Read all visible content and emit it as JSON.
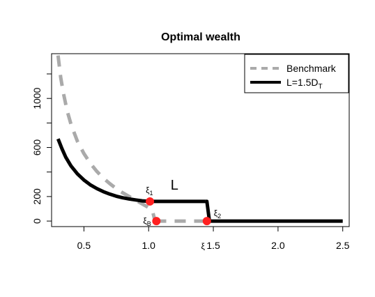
{
  "chart_data": {
    "type": "line",
    "title": "Optimal wealth",
    "xlabel": "",
    "ylabel": "",
    "xlim": [
      0.25,
      2.55
    ],
    "ylim": [
      -45,
      1365
    ],
    "xticks": [
      0.5,
      1.0,
      1.5,
      2.0,
      2.5
    ],
    "xtick_labels": [
      "0.5",
      "1.0",
      "1.5",
      "2.0",
      "2.5"
    ],
    "yticks": [
      0,
      200,
      600,
      1000
    ],
    "ytick_labels": [
      "0",
      "200",
      "600",
      "1000"
    ],
    "grid": false,
    "legend_position": "top-right",
    "series": [
      {
        "name": "Benchmark",
        "color": "#aaaaaa",
        "style": "dashed",
        "x": [
          0.3,
          0.32,
          0.34,
          0.37,
          0.4,
          0.45,
          0.5,
          0.55,
          0.6,
          0.65,
          0.7,
          0.75,
          0.8,
          0.85,
          0.9,
          0.95,
          1.0,
          1.03,
          1.05
        ],
        "y": [
          1350,
          1175,
          1050,
          900,
          790,
          650,
          550,
          470,
          405,
          350,
          305,
          265,
          230,
          200,
          170,
          140,
          110,
          80,
          0
        ]
      },
      {
        "name": "Benchmark",
        "color": "#aaaaaa",
        "style": "dashed",
        "x": [
          1.05,
          1.45
        ],
        "y": [
          0,
          0
        ]
      },
      {
        "name": "L=1.5D_T",
        "color": "#000000",
        "style": "solid",
        "x": [
          0.3,
          0.33,
          0.36,
          0.4,
          0.45,
          0.5,
          0.55,
          0.6,
          0.65,
          0.7,
          0.75,
          0.8,
          0.85,
          0.9,
          0.95,
          1.01,
          1.44
        ],
        "y": [
          670,
          590,
          520,
          450,
          385,
          335,
          295,
          265,
          240,
          220,
          203,
          190,
          180,
          172,
          165,
          160,
          160
        ]
      },
      {
        "name": "L=1.5D_T",
        "color": "#000000",
        "style": "solid",
        "x": [
          1.44,
          1.45,
          1.47,
          2.5
        ],
        "y": [
          160,
          160,
          0,
          0
        ]
      }
    ],
    "points": [
      {
        "label": "ξ1",
        "x": 1.01,
        "y": 160,
        "color": "#ff2020"
      },
      {
        "label": "ξB",
        "x": 1.06,
        "y": 0,
        "color": "#ff2020"
      },
      {
        "label": "ξ2",
        "x": 1.45,
        "y": 0,
        "color": "#ff2020"
      }
    ],
    "annotations": [
      {
        "text": "L",
        "x": 1.2,
        "y": 255
      },
      {
        "text": "ξ",
        "x": 1.42,
        "y": -230
      }
    ],
    "legend": [
      {
        "label": "Benchmark",
        "color": "#aaaaaa",
        "style": "dashed"
      },
      {
        "label": "L=1.5D",
        "sub": "T",
        "color": "#000000",
        "style": "solid"
      }
    ]
  }
}
